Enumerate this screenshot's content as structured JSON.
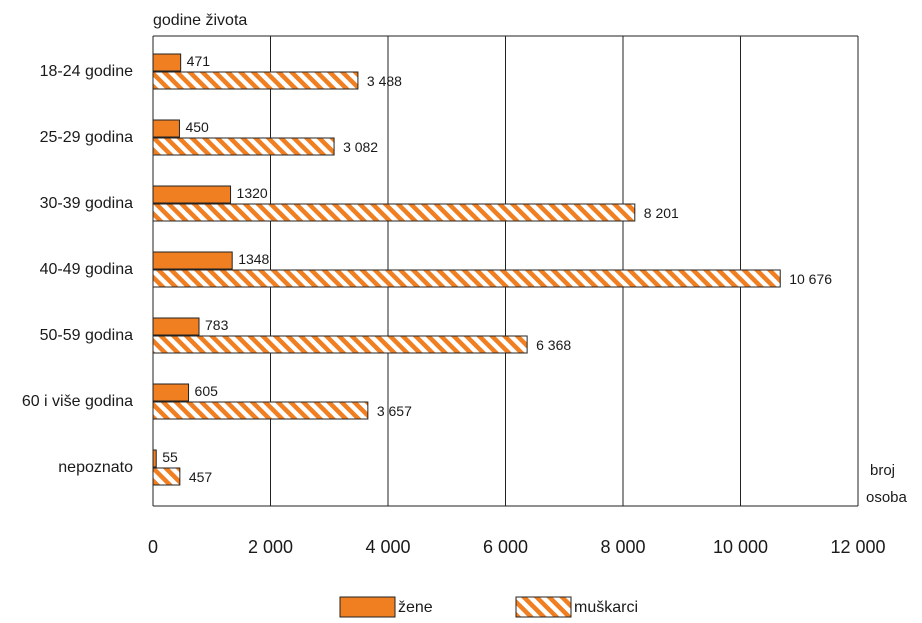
{
  "chart_data": {
    "type": "bar",
    "orientation": "horizontal",
    "ylabel": "godine života",
    "xlabel": "broj osoba",
    "categories": [
      "18-24 godine",
      "25-29 godina",
      "30-39 godina",
      "40-49 godina",
      "50-59 godina",
      "60 i više godina",
      "nepoznato"
    ],
    "series": [
      {
        "name": "žene",
        "values": [
          471,
          450,
          1320,
          1348,
          783,
          605,
          55
        ],
        "value_labels": [
          "471",
          "450",
          "1320",
          "1348",
          "783",
          "605",
          "55"
        ],
        "color": "#f07f22",
        "pattern": "solid"
      },
      {
        "name": "muškarci",
        "values": [
          3488,
          3082,
          8201,
          10676,
          6368,
          3657,
          457
        ],
        "value_labels": [
          "3 488",
          "3 082",
          "8 201",
          "10 676",
          "6 368",
          "3 657",
          "457"
        ],
        "color": "#f07f22",
        "pattern": "diagonal-hatch"
      }
    ],
    "xlim": [
      0,
      12000
    ],
    "xticks": [
      0,
      2000,
      4000,
      6000,
      8000,
      10000,
      12000
    ],
    "xtick_labels": [
      "0",
      "2 000",
      "4 000",
      "6 000",
      "8 000",
      "10 000",
      "12 000"
    ],
    "grid": "vertical",
    "legend": "bottom-center"
  },
  "colors": {
    "bar_fill": "#f07f22",
    "bar_edge": "#222222",
    "grid": "#222222"
  }
}
